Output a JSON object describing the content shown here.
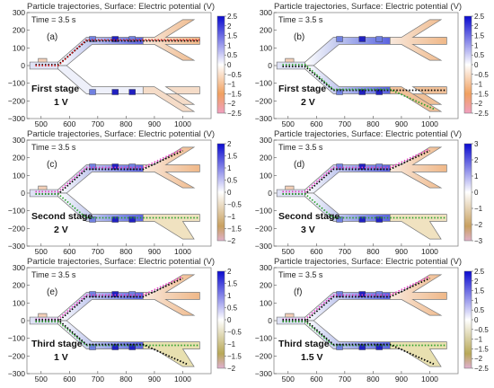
{
  "figure": {
    "panels": [
      {
        "letter": "(a)",
        "title": "Particle trajectories, Surface: Electric potential (V)",
        "time": "Time = 3.5 s",
        "stage": "First stage",
        "voltage": "1 V",
        "outlet": "upper",
        "cbar_ticks": [
          "2.5",
          "2",
          "1.5",
          "1",
          "0.5",
          "0",
          "−0.5",
          "−1",
          "−1.5",
          "−2",
          "−2.5"
        ],
        "cbar_range": [
          -2.5,
          2.5
        ],
        "cbar_style": "blue-orange"
      },
      {
        "letter": "(b)",
        "title": "Particle trajectories, Surface: Electric potential (V)",
        "time": "Time = 3.5 s",
        "stage": "First stage",
        "voltage": "2 V",
        "outlet": "lower",
        "cbar_ticks": [
          "2.5",
          "2",
          "1.5",
          "1",
          "0.5",
          "0",
          "−0.5",
          "−1",
          "−1.5",
          "−2",
          "−2.5"
        ],
        "cbar_range": [
          -2.5,
          2.5
        ],
        "cbar_style": "blue-orange"
      },
      {
        "letter": "(c)",
        "title": "Particle trajectories, Surface: Electric potential (V)",
        "time": "Time = 3.5 s",
        "stage": "Second stage",
        "voltage": "2 V",
        "outlet": "split",
        "cbar_ticks": [
          "2",
          "1.5",
          "1",
          "0.5",
          "0",
          "−0.5",
          "−1",
          "−1.5",
          "−2"
        ],
        "cbar_range": [
          -2,
          2
        ],
        "cbar_style": "blue-tan"
      },
      {
        "letter": "(d)",
        "title": "Particle trajectories, Surface: Electric potential (V)",
        "time": "Time = 3.5 s",
        "stage": "Second stage",
        "voltage": "3 V",
        "outlet": "split",
        "cbar_ticks": [
          "3",
          "2",
          "1",
          "0",
          "−1",
          "−2",
          "−3"
        ],
        "cbar_range": [
          -3,
          3
        ],
        "cbar_style": "blue-tan"
      },
      {
        "letter": "(e)",
        "title": "Particle trajectories, Surface: Electric potential (V)",
        "time": "Time = 3.5 s",
        "stage": "Third stage",
        "voltage": "1 V",
        "outlet": "split3",
        "cbar_ticks": [
          "2",
          "1.5",
          "1",
          "0.5",
          "0",
          "−0.5",
          "−1",
          "−1.5",
          "−2"
        ],
        "cbar_range": [
          -2,
          2
        ],
        "cbar_style": "blue-olive"
      },
      {
        "letter": "(f)",
        "title": "Particle trajectories, Surface: Electric potential (V)",
        "time": "Time = 3.5 s",
        "stage": "Third stage",
        "voltage": "1.5 V",
        "outlet": "split3",
        "cbar_ticks": [
          "2.5",
          "2",
          "1.5",
          "1",
          "0.5",
          "0",
          "−0.5",
          "−1",
          "−1.5",
          "−2",
          "−2.5"
        ],
        "cbar_range": [
          -2.5,
          2.5
        ],
        "cbar_style": "blue-olive"
      }
    ],
    "colors": {
      "positive": "#1a1adb",
      "neutral": "#ffffff",
      "negative_orange": "#f0a060",
      "negative_tan": "#c8a060",
      "negative_olive": "#b8a858",
      "negative_pink": "#f0b0c8",
      "particle_black": "#000000",
      "particle_green": "#2aa02a",
      "particle_pink": "#e040c0",
      "particle_red": "#d02020"
    }
  },
  "chart_data": {
    "type": "other",
    "description_kind": "2D microchannel simulation panels",
    "xlim": [
      450,
      1100
    ],
    "ylim": [
      -300,
      300
    ],
    "xticks": [
      "500",
      "600",
      "700",
      "800",
      "900",
      "1000"
    ],
    "yticks": [
      "300",
      "200",
      "100",
      "0",
      "−100",
      "−200",
      "−300"
    ]
  }
}
